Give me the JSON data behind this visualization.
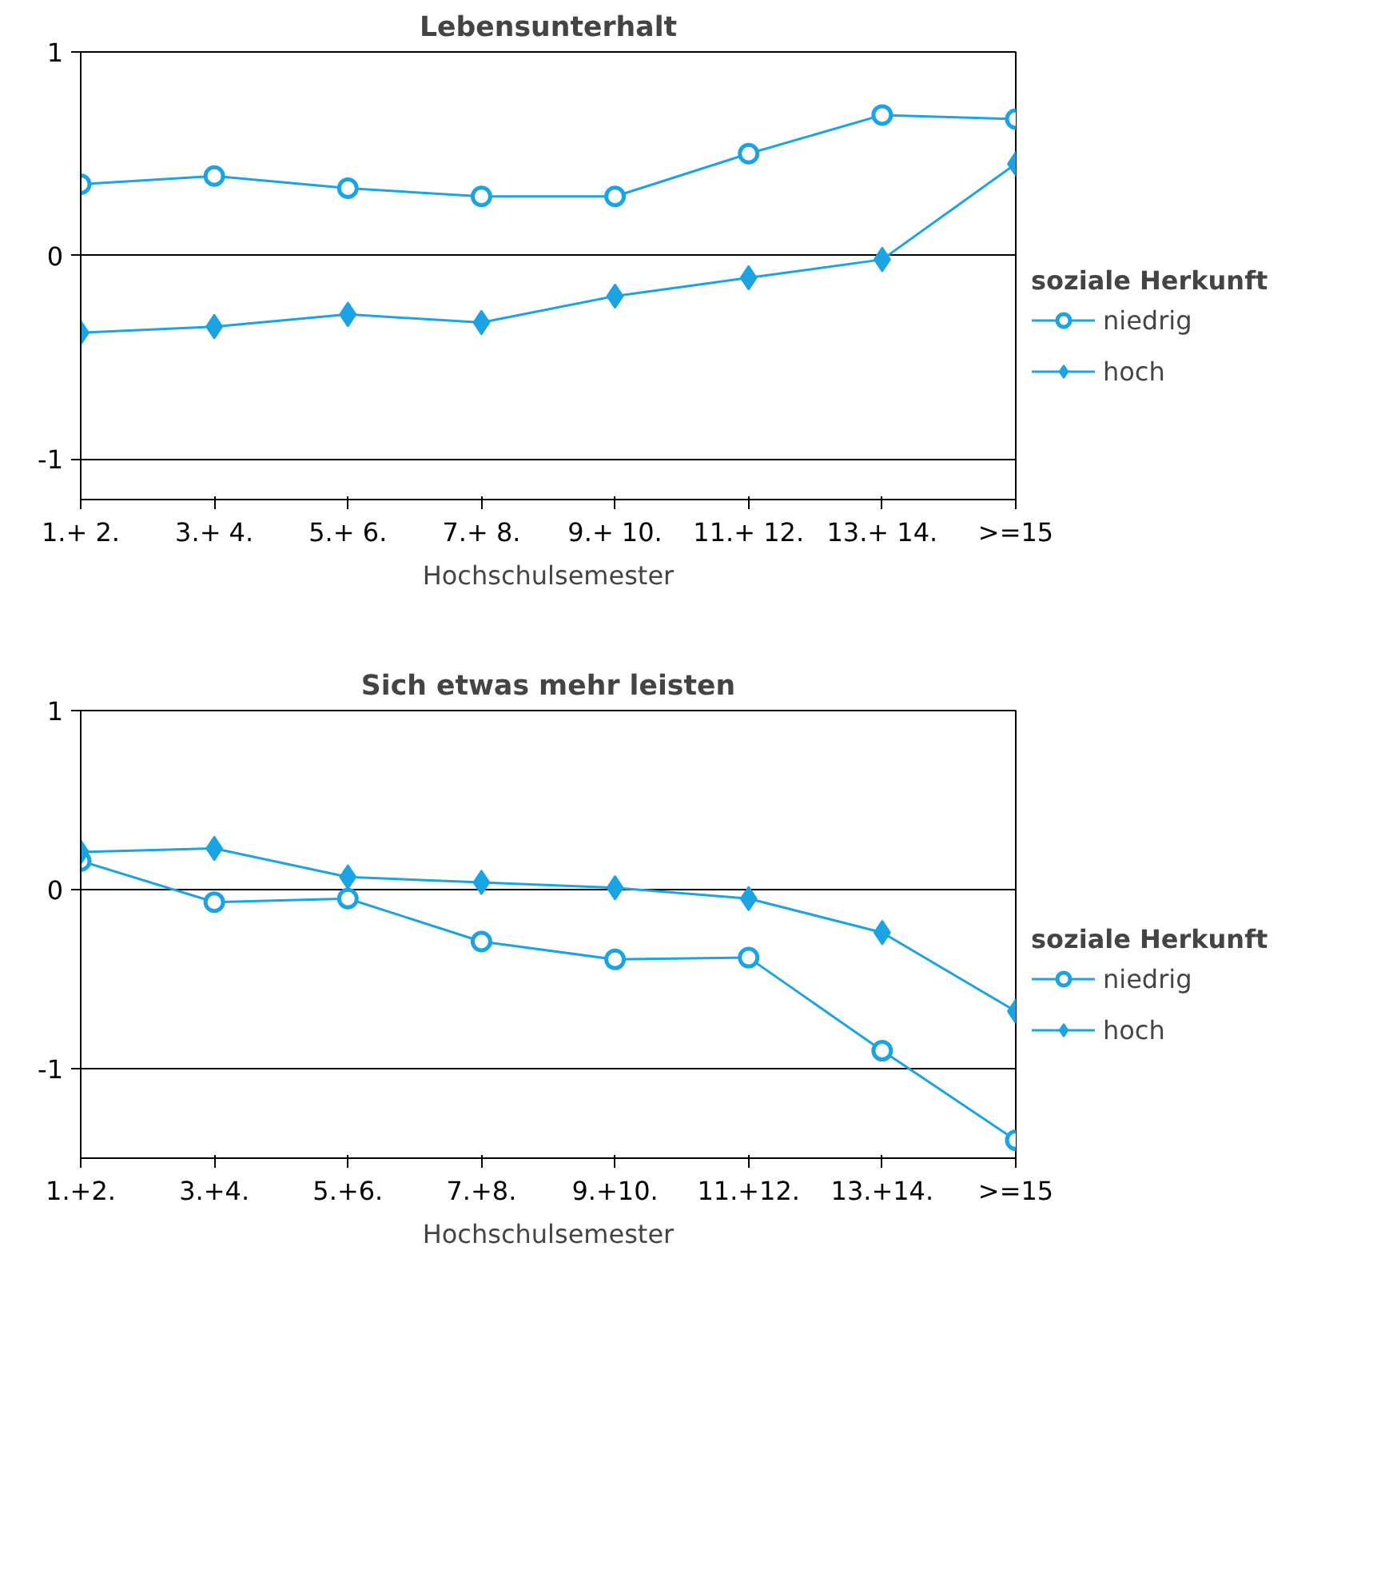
{
  "chart_data": [
    {
      "type": "line",
      "title": "Lebensunterhalt",
      "xlabel": "Hochschulsemester",
      "legend_title": "soziale Herkunft",
      "categories": [
        "1.+ 2.",
        "3.+ 4.",
        "5.+ 6.",
        "7.+ 8.",
        "9.+ 10.",
        "11.+ 12.",
        "13.+ 14.",
        ">=15"
      ],
      "series": [
        {
          "name": "niedrig",
          "color": "#1ba3e3",
          "marker": "circle",
          "values": [
            0.35,
            0.39,
            0.33,
            0.29,
            0.29,
            0.5,
            0.69,
            0.67
          ]
        },
        {
          "name": "hoch",
          "color": "#1ba3e3",
          "marker": "diamond",
          "values": [
            -0.38,
            -0.35,
            -0.29,
            -0.33,
            -0.2,
            -0.11,
            -0.02,
            0.45
          ]
        }
      ],
      "ylim": [
        -1.2,
        1
      ],
      "yticks": [
        -1,
        0,
        1
      ],
      "grid": "y",
      "legend": "right"
    },
    {
      "type": "line",
      "title": "Sich etwas mehr leisten",
      "xlabel": "Hochschulsemester",
      "legend_title": "soziale Herkunft",
      "categories": [
        "1.+2.",
        "3.+4.",
        "5.+6.",
        "7.+8.",
        "9.+10.",
        "11.+12.",
        "13.+14.",
        ">=15"
      ],
      "series": [
        {
          "name": "niedrig",
          "color": "#1ba3e3",
          "marker": "circle",
          "values": [
            0.16,
            -0.07,
            -0.05,
            -0.29,
            -0.39,
            -0.38,
            -0.9,
            -1.4
          ]
        },
        {
          "name": "hoch",
          "color": "#1ba3e3",
          "marker": "diamond",
          "values": [
            0.21,
            0.23,
            0.07,
            0.04,
            0.01,
            -0.05,
            -0.24,
            -0.68
          ]
        }
      ],
      "ylim": [
        -1.5,
        1
      ],
      "yticks": [
        -1,
        0,
        1
      ],
      "grid": "y",
      "legend": "right"
    }
  ]
}
